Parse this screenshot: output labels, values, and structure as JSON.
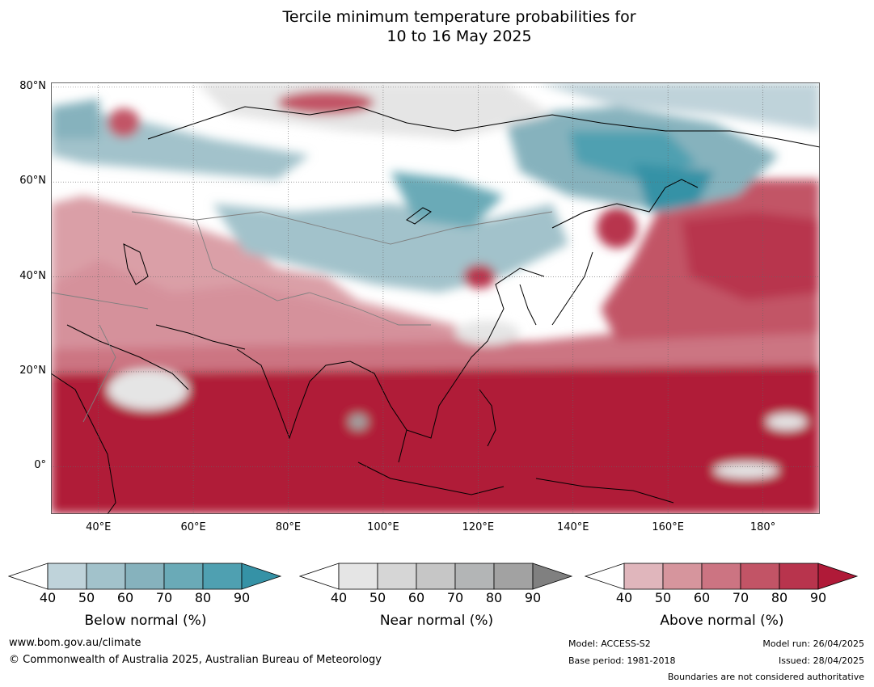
{
  "title": {
    "line1": "Tercile minimum temperature probabilities for",
    "line2": "10 to 16 May 2025"
  },
  "map": {
    "lon_range": [
      30,
      192
    ],
    "lat_range": [
      -10,
      81
    ],
    "lat_labels": [
      {
        "lat": 80,
        "text": "80°N"
      },
      {
        "lat": 60,
        "text": "60°N"
      },
      {
        "lat": 40,
        "text": "40°N"
      },
      {
        "lat": 20,
        "text": "20°N"
      },
      {
        "lat": 0,
        "text": "0°"
      }
    ],
    "lon_labels": [
      {
        "lon": 40,
        "text": "40°E"
      },
      {
        "lon": 60,
        "text": "60°E"
      },
      {
        "lon": 80,
        "text": "80°E"
      },
      {
        "lon": 100,
        "text": "100°E"
      },
      {
        "lon": 120,
        "text": "120°E"
      },
      {
        "lon": 140,
        "text": "140°E"
      },
      {
        "lon": 160,
        "text": "160°E"
      },
      {
        "lon": 180,
        "text": "180°"
      }
    ]
  },
  "colorbars": [
    {
      "label": "Below normal (%)",
      "ticks": [
        "40",
        "50",
        "60",
        "70",
        "80",
        "90"
      ],
      "colors": [
        "#bfd3da",
        "#a2c2cb",
        "#86b2bd",
        "#6aaab7",
        "#4fa0b1",
        "#3592a6"
      ]
    },
    {
      "label": "Near normal (%)",
      "ticks": [
        "40",
        "50",
        "60",
        "70",
        "80",
        "90"
      ],
      "colors": [
        "#e5e5e5",
        "#d6d6d6",
        "#c6c6c6",
        "#b3b5b6",
        "#a2a2a2",
        "#808080"
      ]
    },
    {
      "label": "Above normal (%)",
      "ticks": [
        "40",
        "50",
        "60",
        "70",
        "80",
        "90"
      ],
      "colors": [
        "#e0b6bc",
        "#d6959d",
        "#cc7482",
        "#c25466",
        "#b8344d",
        "#b01a38"
      ]
    }
  ],
  "footer": {
    "website": "www.bom.gov.au/climate",
    "copyright": "© Commonwealth of Australia 2025, Australian Bureau of Meteorology",
    "model": "Model: ACCESS-S2",
    "base_period": "Base period: 1981-2018",
    "model_run": "Model run: 26/04/2025",
    "issued": "Issued: 28/04/2025",
    "disclaimer": "Boundaries are not considered authoritative"
  }
}
